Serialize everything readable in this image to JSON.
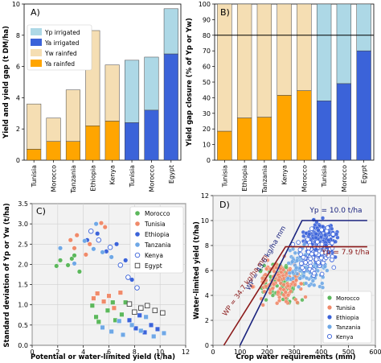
{
  "colors": {
    "yp_irrigated": "#add8e6",
    "ya_irrigated": "#3b63d9",
    "yw_rainfed": "#f5deb3",
    "ya_rainfed": "#ffa500",
    "morocco": "#5cb85c",
    "tunisia": "#f08a6a",
    "ethiopia": "#3b63d9",
    "tanzania": "#6fa8e6",
    "kenya": "#3b63d9",
    "egypt": "#444444"
  },
  "chart_data": [
    {
      "type": "bar",
      "panel_label": "A)",
      "ylabel": "Yield and yield gap (t DM/ha)",
      "ylim": [
        0,
        10
      ],
      "yticks": [
        "0",
        "2",
        "4",
        "6",
        "8",
        "10"
      ],
      "categories": [
        "Tunisia",
        "Morocco",
        "Tanzania",
        "Ethiopia",
        "Kenya",
        "Tunisia",
        "Morocco",
        "Egypt"
      ],
      "water_regime": [
        "rainfed",
        "rainfed",
        "rainfed",
        "rainfed",
        "rainfed",
        "irrigated",
        "irrigated",
        "irrigated"
      ],
      "series": [
        {
          "name": "Ya rainfed / Ya irrigated (actual yield)",
          "values": [
            0.7,
            1.2,
            1.2,
            2.2,
            2.5,
            2.4,
            3.2,
            6.8
          ]
        },
        {
          "name": "Yw rainfed / Yp irrigated (potential yield)",
          "values": [
            3.6,
            2.7,
            4.5,
            8.3,
            6.1,
            6.4,
            6.6,
            9.7
          ]
        }
      ],
      "legend": [
        "Yp irrigated",
        "Ya irrigated",
        "Yw rainfed",
        "Ya rainfed"
      ],
      "legend_position": "top-left"
    },
    {
      "type": "bar",
      "panel_label": "B)",
      "ylabel": "Yield gap closure (% of Yp or Yw)",
      "ylim": [
        0,
        100
      ],
      "yticks": [
        "0",
        "10",
        "20",
        "30",
        "40",
        "50",
        "60",
        "70",
        "80",
        "90",
        "100"
      ],
      "reference_line": 80,
      "categories": [
        "Tunisia",
        "Ethiopia",
        "Tanzania",
        "Kenya",
        "Morocco",
        "Tunisia",
        "Morocco",
        "Egypt"
      ],
      "water_regime": [
        "rainfed",
        "rainfed",
        "rainfed",
        "rainfed",
        "rainfed",
        "irrigated",
        "irrigated",
        "irrigated"
      ],
      "values": [
        18.5,
        27,
        27.5,
        41.5,
        44.5,
        38,
        49,
        70
      ]
    },
    {
      "type": "scatter",
      "panel_label": "C)",
      "xlabel": "Potential or water-limited yield (t/ha)",
      "ylabel": "Standard deviation of Yp or Yw (t/ha)",
      "xlim": [
        0,
        12
      ],
      "ylim": [
        0,
        3.5
      ],
      "xticks": [
        "0",
        "2",
        "4",
        "6",
        "8",
        "10",
        "12"
      ],
      "yticks": [
        "0.0",
        "0.5",
        "1.0",
        "1.5",
        "2.0",
        "2.5",
        "3.0",
        "3.5"
      ],
      "grid": true,
      "legend": [
        "Morocco",
        "Tunisia",
        "Ethiopia",
        "Tanzania",
        "Kenya",
        "Egypt"
      ],
      "legend_position": "top-right",
      "series": [
        {
          "name": "Morocco",
          "marker": "circle",
          "x": [
            1.9,
            2.2,
            2.8,
            3.1,
            3.3,
            3.7
          ],
          "y": [
            1.96,
            2.1,
            1.98,
            2.14,
            2.22,
            1.82
          ]
        },
        {
          "name": "Tunisia",
          "marker": "circle",
          "x": [
            3.0,
            3.3,
            3.5,
            4.2,
            4.5,
            5.4,
            5.7
          ],
          "y": [
            2.6,
            2.4,
            2.72,
            2.24,
            2.5,
            3.02,
            2.92
          ]
        },
        {
          "name": "Ethiopia",
          "marker": "circle",
          "x": [
            4.3,
            5.1,
            5.8,
            6.6,
            7.3,
            7.8
          ],
          "y": [
            2.6,
            2.76,
            2.32,
            2.5,
            2.1,
            1.62
          ]
        },
        {
          "name": "Tanzania",
          "marker": "circle",
          "x": [
            2.2,
            3.3,
            4.1,
            4.8,
            5.0,
            5.5,
            6.2
          ],
          "y": [
            2.4,
            2.02,
            2.58,
            2.38,
            3.0,
            2.3,
            2.18
          ]
        },
        {
          "name": "Kenya",
          "marker": "circle-open",
          "x": [
            4.6,
            5.2,
            6.1,
            6.9,
            7.5,
            8.2
          ],
          "y": [
            2.82,
            2.6,
            2.42,
            1.98,
            1.68,
            1.42
          ]
        },
        {
          "name": "Morocco",
          "marker": "square",
          "x": [
            4.7,
            5.0,
            5.2,
            5.9,
            6.3,
            6.5,
            7.0,
            7.3
          ],
          "y": [
            0.98,
            0.7,
            0.58,
            0.86,
            1.06,
            0.62,
            0.76,
            1.06
          ]
        },
        {
          "name": "Tunisia",
          "marker": "square",
          "x": [
            4.8,
            5.1,
            5.6,
            6.0,
            6.4,
            6.9
          ],
          "y": [
            1.16,
            1.28,
            1.08,
            1.22,
            0.92,
            1.3
          ]
        },
        {
          "name": "Ethiopia",
          "marker": "square",
          "x": [
            7.6,
            8.1,
            8.4,
            8.8,
            9.3,
            9.8
          ],
          "y": [
            0.62,
            0.42,
            0.74,
            0.32,
            0.5,
            0.4
          ]
        },
        {
          "name": "Tanzania",
          "marker": "square",
          "x": [
            5.5,
            6.2,
            6.8,
            7.1,
            7.8,
            8.5,
            8.9,
            9.5,
            10.3
          ],
          "y": [
            0.44,
            0.34,
            0.6,
            0.26,
            0.5,
            0.36,
            0.7,
            0.22,
            0.3
          ]
        },
        {
          "name": "Egypt",
          "marker": "square-open",
          "x": [
            7.6,
            8.0,
            8.5,
            9.0,
            9.6,
            10.2
          ],
          "y": [
            1.02,
            0.82,
            0.92,
            0.98,
            0.86,
            0.8
          ]
        }
      ]
    },
    {
      "type": "scatter",
      "panel_label": "D)",
      "xlabel": "Crop water requirements (mm)",
      "ylabel": "Water-limited yield (t/ha)",
      "xlim": [
        0,
        600
      ],
      "ylim": [
        0,
        12
      ],
      "xticks": [
        "0",
        "100",
        "200",
        "300",
        "400",
        "500",
        "600"
      ],
      "yticks": [
        "0",
        "2",
        "4",
        "6",
        "8",
        "10",
        "12"
      ],
      "grid": true,
      "legend": [
        "Morocco",
        "Tunisia",
        "Ethiopia",
        "Tanzania",
        "Kenya"
      ],
      "legend_position": "bottom-right",
      "annotations": [
        {
          "text": "Yp = 10.0 t/ha",
          "x": 430,
          "y": 10.2
        },
        {
          "text": "Yp = 7.9 t/ha",
          "x": 420,
          "y": 7.1
        },
        {
          "text": "WP = 43.6 kg/ha mm",
          "x": 200,
          "y": 6.8
        },
        {
          "text": "WP = 34.7 kg/ha mm",
          "x": 145,
          "y": 4.3
        }
      ],
      "boundary_lines": [
        {
          "label": "Yp = 10.0 t/ha, WP = 43.6 kg/ha mm",
          "x": [
            100,
            329,
            570
          ],
          "y": [
            0,
            10,
            10
          ]
        },
        {
          "label": "Yp = 7.9 t/ha, WP = 34.7 kg/ha mm",
          "x": [
            40,
            268,
            570
          ],
          "y": [
            0,
            7.9,
            7.9
          ]
        }
      ]
    }
  ]
}
